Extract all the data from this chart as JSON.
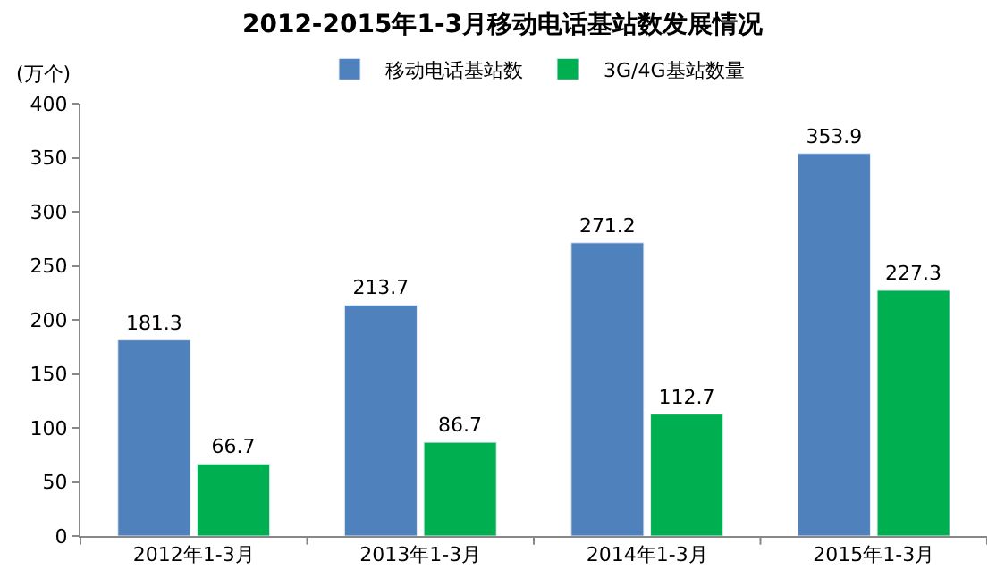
{
  "chart_data": {
    "type": "bar",
    "title": "2012-2015年1-3月移动电话基站数发展情况",
    "ylabel": "(万个)",
    "categories": [
      "2012年1-3月",
      "2013年1-3月",
      "2014年1-3月",
      "2015年1-3月"
    ],
    "series": [
      {
        "name": "移动电话基站数",
        "color": "#4f81bd",
        "values": [
          181.3,
          213.7,
          271.2,
          353.9
        ]
      },
      {
        "name": "3G/4G基站数量",
        "color": "#00b050",
        "values": [
          66.7,
          86.7,
          112.7,
          227.3
        ]
      }
    ],
    "ylim": [
      0,
      400
    ],
    "yticks": [
      0,
      50,
      100,
      150,
      200,
      250,
      300,
      350,
      400
    ],
    "legend": "top",
    "data_labels": true
  }
}
